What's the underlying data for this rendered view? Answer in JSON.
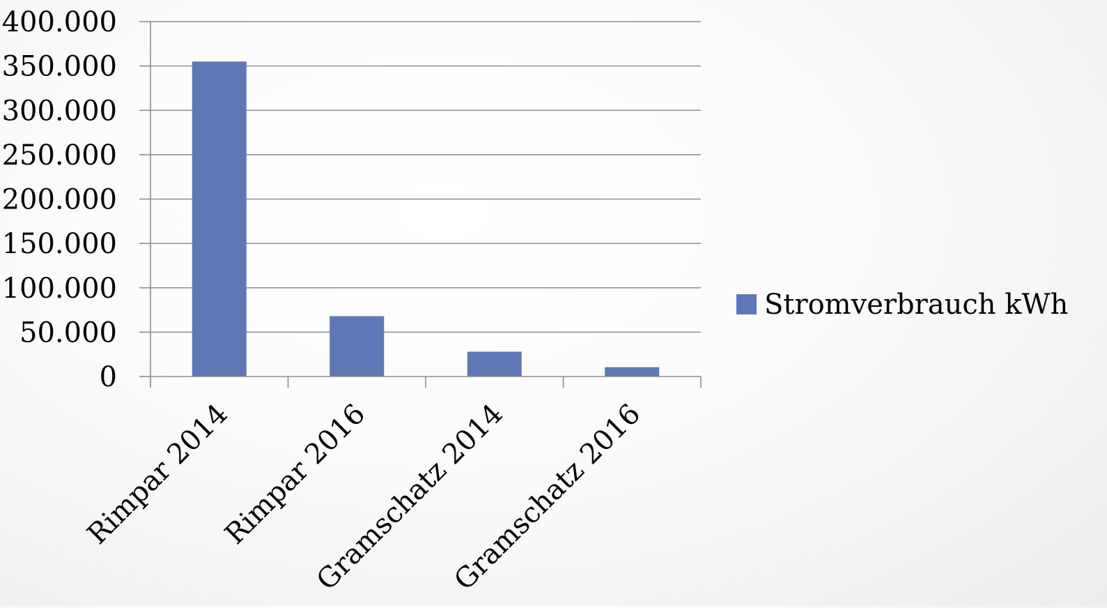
{
  "chart_data": {
    "type": "bar",
    "categories": [
      "Rimpar 2014",
      "Rimpar 2016",
      "Gramschatz 2014",
      "Gramschatz 2016"
    ],
    "series": [
      {
        "name": "Stromverbrauch kWh",
        "color": "#6177b5",
        "values": [
          355000,
          68000,
          28000,
          10500
        ]
      }
    ],
    "ylim": [
      0,
      400000
    ],
    "ytick_labels": [
      "0",
      "50.000",
      "100.000",
      "150.000",
      "200.000",
      "250.000",
      "300.000",
      "350.000",
      "400.000"
    ],
    "grid": true,
    "legend_position": "right"
  }
}
